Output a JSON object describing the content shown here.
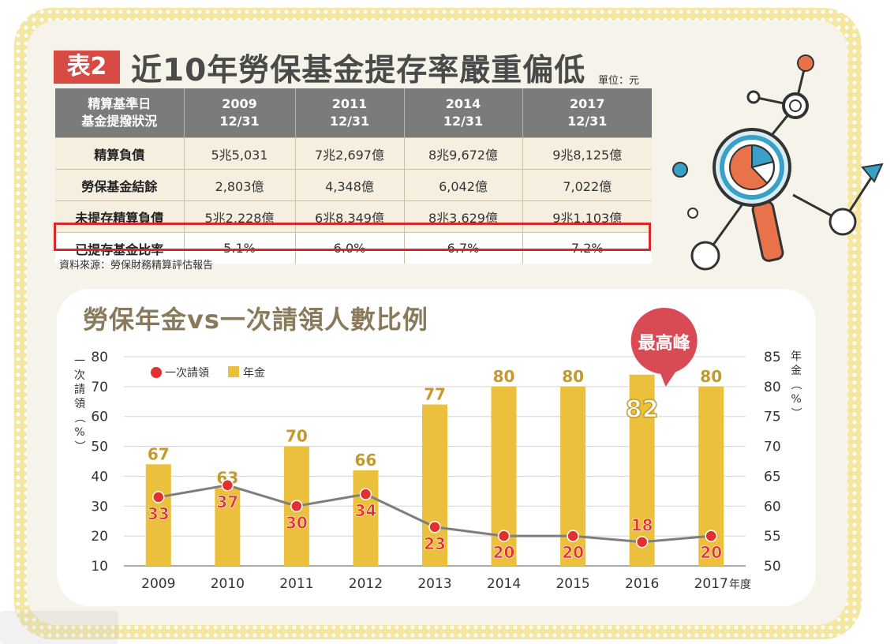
{
  "table_section": {
    "badge": "表2",
    "title": "近10年勞保基金提存率嚴重偏低",
    "unit": "單位：元",
    "header_label_1": "精算基準日",
    "header_label_2": "基金提撥狀況",
    "columns": [
      {
        "year": "2009",
        "date": "12/31"
      },
      {
        "year": "2011",
        "date": "12/31"
      },
      {
        "year": "2014",
        "date": "12/31"
      },
      {
        "year": "2017",
        "date": "12/31"
      }
    ],
    "rows": [
      {
        "label": "精算負債",
        "values": [
          "5兆5,031",
          "7兆2,697億",
          "8兆9,672億",
          "9兆8,125億"
        ]
      },
      {
        "label": "勞保基金結餘",
        "values": [
          "2,803億",
          "4,348億",
          "6,042億",
          "7,022億"
        ]
      },
      {
        "label": "未提存精算負債",
        "values": [
          "5兆2,228億",
          "6兆8,349億",
          "8兆3,629億",
          "9兆1,103億"
        ]
      },
      {
        "label": "已提存基金比率",
        "values": [
          "5.1%",
          "6.0%",
          "6.7%",
          "7.2%"
        ]
      }
    ],
    "source": "資料來源：勞保財務精算評估報告"
  },
  "colors": {
    "bar": "#ebc03c",
    "bar_label": "#c49a2f",
    "line": "#7e7e7e",
    "point": "#e23030",
    "point_label": "#e23030",
    "callout": "#d84a54",
    "deco_orange": "#e8734a",
    "deco_blue": "#3aa0c7"
  },
  "chart_data": {
    "type": "bar",
    "title": "勞保年金vs一次請領人數比例",
    "xlabel": "年度",
    "ylabel_left": "一次請領（%）",
    "ylabel_right": "年金（%）",
    "categories": [
      "2009",
      "2010",
      "2011",
      "2012",
      "2013",
      "2014",
      "2015",
      "2016",
      "2017"
    ],
    "y_left": {
      "min": 10,
      "max": 80,
      "ticks": [
        "10",
        "20",
        "30",
        "40",
        "50",
        "60",
        "70",
        "80"
      ]
    },
    "y_right": {
      "min": 50,
      "max": 85,
      "ticks": [
        "50",
        "55",
        "60",
        "65",
        "70",
        "75",
        "80",
        "85"
      ]
    },
    "grid": true,
    "legend_position": "top-left",
    "series": [
      {
        "name": "一次請領",
        "type": "line",
        "axis": "left",
        "values": [
          33,
          37,
          30,
          34,
          23,
          20,
          20,
          18,
          20
        ]
      },
      {
        "name": "年金",
        "type": "bar",
        "axis": "right",
        "values": [
          67,
          63,
          70,
          66,
          77,
          80,
          80,
          82,
          80
        ]
      }
    ],
    "annotation": {
      "label": "最高峰",
      "category": "2016"
    }
  }
}
